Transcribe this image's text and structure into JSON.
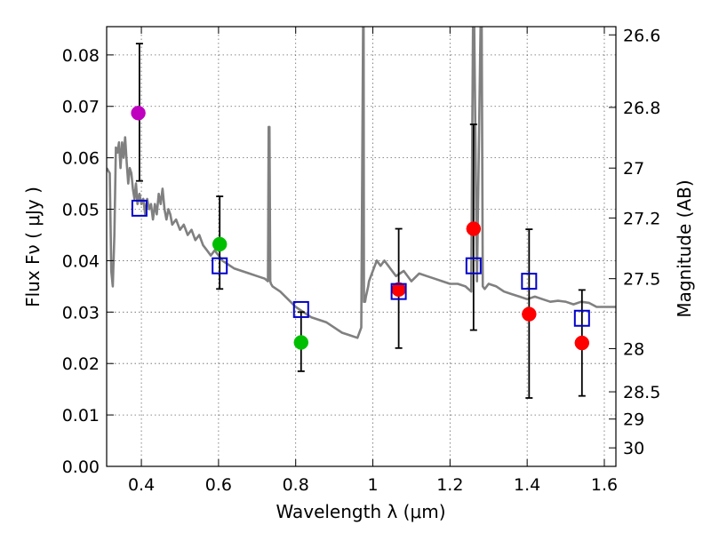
{
  "chart_data": {
    "type": "scatter",
    "xlabel": "Wavelength  λ (μm)",
    "ylabel": "Flux  Fν  ( μJy )",
    "y2label": "Magnitude (AB)",
    "xlim": [
      0.31,
      1.63
    ],
    "ylim": [
      0.0,
      0.0855
    ],
    "xticks": [
      0.4,
      0.6,
      0.8,
      1.0,
      1.2,
      1.4,
      1.6
    ],
    "xtick_labels": [
      "0.4",
      "0.6",
      "0.8",
      "1",
      "1.2",
      "1.4",
      "1.6"
    ],
    "yticks": [
      0.0,
      0.01,
      0.02,
      0.03,
      0.04,
      0.05,
      0.06,
      0.07,
      0.08
    ],
    "ytick_labels": [
      "0.00",
      "0.01",
      "0.02",
      "0.03",
      "0.04",
      "0.05",
      "0.06",
      "0.07",
      "0.08"
    ],
    "y2ticks": [
      {
        "flux": 0.0839,
        "label": "26.6"
      },
      {
        "flux": 0.0698,
        "label": "26.8"
      },
      {
        "flux": 0.058,
        "label": "27"
      },
      {
        "flux": 0.0483,
        "label": "27.2"
      },
      {
        "flux": 0.0365,
        "label": "27.5"
      },
      {
        "flux": 0.0229,
        "label": "28"
      },
      {
        "flux": 0.0145,
        "label": "28.5"
      },
      {
        "flux": 0.0092,
        "label": "29"
      },
      {
        "flux": 0.0036,
        "label": "30"
      }
    ],
    "grid": true,
    "colors": {
      "model": "#808080",
      "violet": "#bf00bf",
      "green": "#00bf00",
      "red": "#ff0000",
      "square": "#0000cc",
      "errorbar": "#000000"
    },
    "series": [
      {
        "type": "line",
        "color": "#808080",
        "x": [
          0.31,
          0.318,
          0.322,
          0.326,
          0.33,
          0.334,
          0.338,
          0.342,
          0.346,
          0.35,
          0.354,
          0.358,
          0.362,
          0.366,
          0.37,
          0.374,
          0.378,
          0.382,
          0.386,
          0.39,
          0.395,
          0.4,
          0.405,
          0.41,
          0.415,
          0.42,
          0.425,
          0.43,
          0.435,
          0.44,
          0.445,
          0.45,
          0.455,
          0.46,
          0.465,
          0.47,
          0.475,
          0.48,
          0.49,
          0.5,
          0.51,
          0.52,
          0.53,
          0.54,
          0.55,
          0.56,
          0.57,
          0.58,
          0.59,
          0.6,
          0.61,
          0.62,
          0.64,
          0.66,
          0.68,
          0.7,
          0.72,
          0.728,
          0.73,
          0.732,
          0.734,
          0.736,
          0.74,
          0.76,
          0.78,
          0.8,
          0.82,
          0.84,
          0.86,
          0.88,
          0.9,
          0.92,
          0.94,
          0.96,
          0.97,
          0.975,
          0.976,
          0.977,
          0.98,
          0.982,
          0.985,
          0.988,
          0.99,
          1.0,
          1.01,
          1.02,
          1.03,
          1.04,
          1.05,
          1.06,
          1.08,
          1.1,
          1.12,
          1.14,
          1.16,
          1.18,
          1.2,
          1.22,
          1.24,
          1.255,
          1.26,
          1.262,
          1.27,
          1.28,
          1.282,
          1.285,
          1.29,
          1.3,
          1.32,
          1.34,
          1.36,
          1.38,
          1.4,
          1.42,
          1.44,
          1.46,
          1.48,
          1.5,
          1.52,
          1.54,
          1.56,
          1.58,
          1.6,
          1.63
        ],
        "y": [
          0.058,
          0.057,
          0.038,
          0.035,
          0.045,
          0.062,
          0.061,
          0.063,
          0.058,
          0.063,
          0.06,
          0.064,
          0.059,
          0.055,
          0.058,
          0.057,
          0.054,
          0.052,
          0.055,
          0.051,
          0.053,
          0.051,
          0.052,
          0.049,
          0.052,
          0.05,
          0.051,
          0.048,
          0.051,
          0.049,
          0.053,
          0.051,
          0.054,
          0.05,
          0.048,
          0.05,
          0.049,
          0.047,
          0.048,
          0.046,
          0.047,
          0.045,
          0.046,
          0.044,
          0.045,
          0.043,
          0.042,
          0.041,
          0.042,
          0.041,
          0.04,
          0.0395,
          0.0385,
          0.038,
          0.0375,
          0.037,
          0.0365,
          0.036,
          0.066,
          0.066,
          0.036,
          0.0355,
          0.035,
          0.034,
          0.0325,
          0.031,
          0.03,
          0.029,
          0.0285,
          0.028,
          0.027,
          0.026,
          0.0255,
          0.025,
          0.027,
          0.09,
          0.09,
          0.032,
          0.032,
          0.033,
          0.034,
          0.035,
          0.036,
          0.038,
          0.04,
          0.039,
          0.04,
          0.039,
          0.038,
          0.037,
          0.038,
          0.036,
          0.0375,
          0.037,
          0.0365,
          0.036,
          0.0355,
          0.0355,
          0.035,
          0.034,
          0.09,
          0.09,
          0.036,
          0.09,
          0.09,
          0.035,
          0.0345,
          0.0355,
          0.035,
          0.034,
          0.0335,
          0.033,
          0.0325,
          0.033,
          0.0325,
          0.032,
          0.0322,
          0.032,
          0.0315,
          0.032,
          0.0318,
          0.031,
          0.031,
          0.031
        ]
      },
      {
        "type": "errorbar",
        "color": "#000000",
        "points": [
          {
            "x": 0.395,
            "low": 0.0555,
            "high": 0.0822
          },
          {
            "x": 0.603,
            "low": 0.0345,
            "high": 0.0525
          },
          {
            "x": 0.814,
            "low": 0.0185,
            "high": 0.03
          },
          {
            "x": 1.067,
            "low": 0.023,
            "high": 0.0462
          },
          {
            "x": 1.261,
            "low": 0.0265,
            "high": 0.0665
          },
          {
            "x": 1.405,
            "low": 0.0133,
            "high": 0.0461
          },
          {
            "x": 1.542,
            "low": 0.0137,
            "high": 0.0343
          }
        ]
      },
      {
        "type": "marker",
        "marker": "circle",
        "points": [
          {
            "x": 0.392,
            "y": 0.0687,
            "color": "#bf00bf"
          },
          {
            "x": 0.603,
            "y": 0.0432,
            "color": "#00bf00"
          },
          {
            "x": 0.814,
            "y": 0.0241,
            "color": "#00bf00"
          },
          {
            "x": 1.067,
            "y": 0.0344,
            "color": "#ff0000"
          },
          {
            "x": 1.261,
            "y": 0.0462,
            "color": "#ff0000"
          },
          {
            "x": 1.405,
            "y": 0.0296,
            "color": "#ff0000"
          },
          {
            "x": 1.542,
            "y": 0.024,
            "color": "#ff0000"
          }
        ]
      },
      {
        "type": "marker",
        "marker": "square",
        "color": "#0000cc",
        "points": [
          {
            "x": 0.395,
            "y": 0.0502
          },
          {
            "x": 0.603,
            "y": 0.039
          },
          {
            "x": 0.814,
            "y": 0.0305
          },
          {
            "x": 1.067,
            "y": 0.034
          },
          {
            "x": 1.261,
            "y": 0.039
          },
          {
            "x": 1.405,
            "y": 0.036
          },
          {
            "x": 1.542,
            "y": 0.0288
          }
        ]
      }
    ]
  }
}
